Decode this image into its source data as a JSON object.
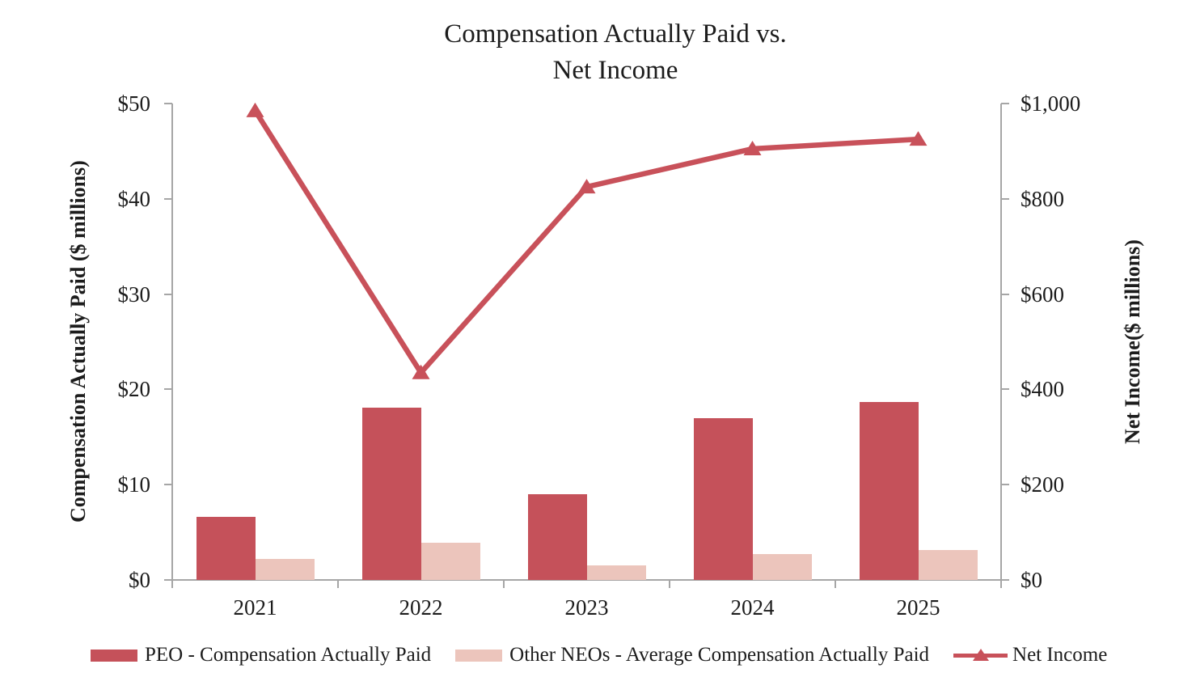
{
  "title": {
    "line1": "Compensation Actually Paid vs.",
    "line2": "Net Income"
  },
  "left_axis": {
    "title": "Compensation Actually Paid ($ millions)",
    "ticks": [
      "$50",
      "$40",
      "$30",
      "$20",
      "$10",
      "$0"
    ],
    "min": 0,
    "max": 50
  },
  "right_axis": {
    "title_line1": "Net Income",
    "title_line2": "($ millions)",
    "ticks": [
      "$1,000",
      "$800",
      "$600",
      "$400",
      "$200",
      "$0"
    ],
    "min": 0,
    "max": 1000
  },
  "x_axis": {
    "categories": [
      "2021",
      "2022",
      "2023",
      "2024",
      "2025"
    ]
  },
  "legend": {
    "items": [
      {
        "label": "PEO - Compensation Actually Paid",
        "swatch": "peo-bar-swatch"
      },
      {
        "label": "Other NEOs - Average Compensation Actually Paid",
        "swatch": "neo-bar-swatch"
      },
      {
        "label": "Net Income",
        "swatch": "line-triangle-swatch"
      }
    ]
  },
  "colors": {
    "peo_bar": "#C5515A",
    "neo_bar": "#ECC5BC",
    "net_income_line": "#C8515A",
    "axis": "#A6A6A6",
    "text": "#1C1C1C"
  },
  "chart_data": {
    "type": "bar",
    "subtype": "grouped-bar-with-line-combo",
    "title": "Compensation Actually Paid vs. Net Income",
    "categories": [
      "2021",
      "2022",
      "2023",
      "2024",
      "2025"
    ],
    "series": [
      {
        "name": "PEO - Compensation Actually Paid",
        "type": "bar",
        "axis": "left",
        "values": [
          6.6,
          18.1,
          9.0,
          17.0,
          18.7
        ]
      },
      {
        "name": "Other NEOs - Average Compensation Actually Paid",
        "type": "bar",
        "axis": "left",
        "values": [
          2.2,
          3.9,
          1.5,
          2.7,
          3.1
        ]
      },
      {
        "name": "Net Income",
        "type": "line",
        "axis": "right",
        "marker": "triangle",
        "values": [
          985,
          435,
          825,
          905,
          925
        ]
      }
    ],
    "left_ylabel": "Compensation Actually Paid ($ millions)",
    "left_ylim": [
      0,
      50
    ],
    "left_ytick_step": 10,
    "right_ylabel": "Net Income ($ millions)",
    "right_ylim": [
      0,
      1000
    ],
    "right_ytick_step": 200,
    "grid": false,
    "legend_position": "bottom"
  }
}
